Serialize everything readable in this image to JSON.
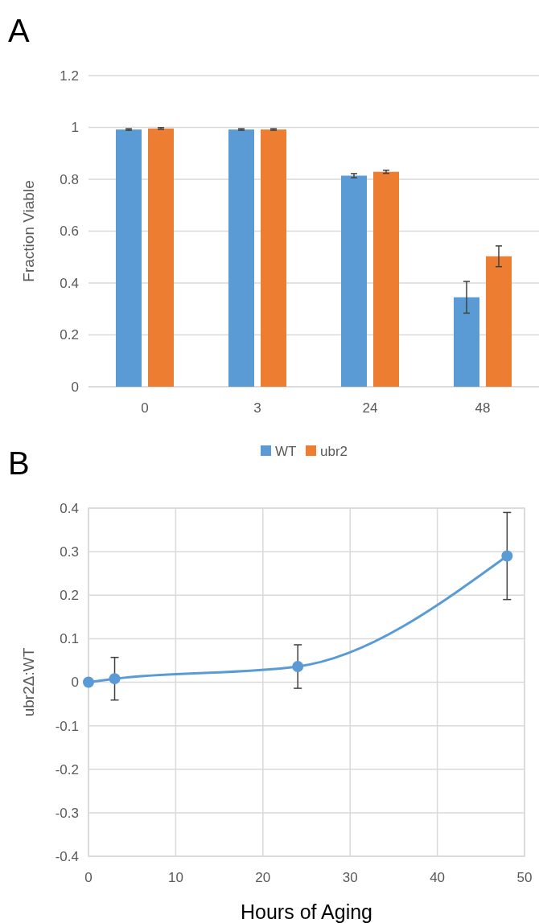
{
  "chart_data": [
    {
      "type": "bar",
      "annotations": [
        "A"
      ],
      "categories": [
        "0",
        "3",
        "24",
        "48"
      ],
      "ylabel": "Fraction Viable",
      "ylim": [
        0,
        1.2
      ],
      "yticks": [
        0,
        0.2,
        0.4,
        0.6,
        0.8,
        1,
        1.2
      ],
      "grid": "y",
      "legend": "bottom",
      "series": [
        {
          "name": "WT",
          "color": "#5b9bd5",
          "values": [
            0.992,
            0.992,
            0.814,
            0.345
          ],
          "errors": [
            0.003,
            0.003,
            0.008,
            0.061
          ]
        },
        {
          "name": "ubr2",
          "color": "#ed7d31",
          "values": [
            0.996,
            0.992,
            0.829,
            0.503
          ],
          "errors": [
            0.003,
            0.003,
            0.006,
            0.04
          ]
        }
      ]
    },
    {
      "type": "line",
      "annotations": [
        "B"
      ],
      "xlabel": "Hours of Aging",
      "ylabel": "ubr2Δ:WT",
      "x": [
        0,
        3,
        24,
        48
      ],
      "xlim": [
        0,
        50
      ],
      "xticks": [
        0,
        10,
        20,
        30,
        40,
        50
      ],
      "ylim": [
        -0.4,
        0.4
      ],
      "yticks": [
        -0.4,
        -0.3,
        -0.2,
        -0.1,
        0,
        0.1,
        0.2,
        0.3,
        0.4
      ],
      "grid": true,
      "marker": "circle",
      "series": [
        {
          "color": "#5b9bd5",
          "values": [
            0,
            0.008,
            0.036,
            0.29
          ],
          "errors": [
            null,
            0.049,
            0.05,
            0.1
          ]
        }
      ]
    }
  ]
}
